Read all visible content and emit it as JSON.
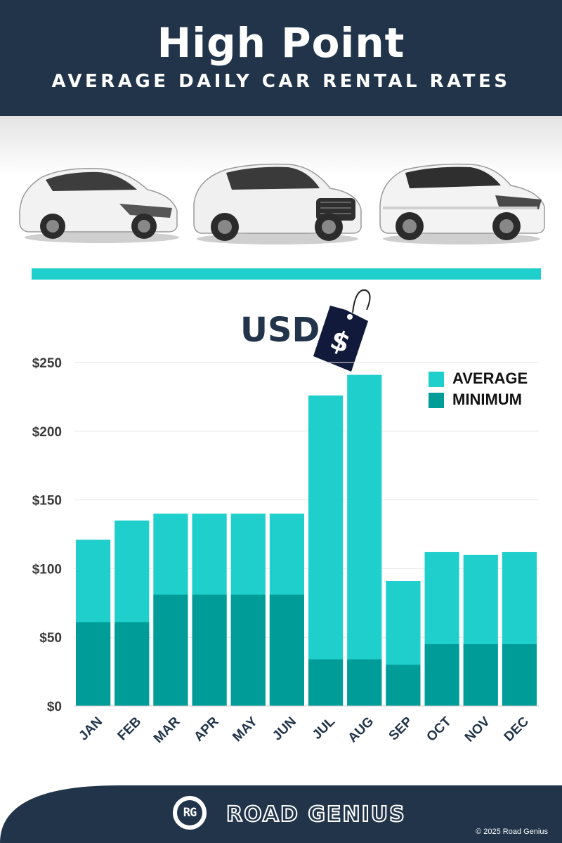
{
  "header": {
    "title": "High Point",
    "subtitle": "AVERAGE DAILY CAR RENTAL RATES"
  },
  "currency_label": "USD",
  "price_tag_symbol": "$",
  "colors": {
    "navy": "#21344a",
    "average": "#1ecfcb",
    "minimum": "#009c98",
    "accent_bar": "#1ecfcb"
  },
  "icons": [
    "hatchback-car-icon",
    "suv-car-icon",
    "crossover-car-icon",
    "price-tag-icon"
  ],
  "chart_data": {
    "type": "bar",
    "stacking": "overlay",
    "categories": [
      "JAN",
      "FEB",
      "MAR",
      "APR",
      "MAY",
      "JUN",
      "JUL",
      "AUG",
      "SEP",
      "OCT",
      "NOV",
      "DEC"
    ],
    "series": [
      {
        "name": "AVERAGE",
        "values": [
          121,
          135,
          140,
          140,
          140,
          140,
          226,
          241,
          91,
          112,
          110,
          112
        ]
      },
      {
        "name": "MINIMUM",
        "values": [
          61,
          61,
          81,
          81,
          81,
          81,
          34,
          34,
          30,
          45,
          45,
          45
        ]
      }
    ],
    "y_ticks": [
      "$0",
      "$50",
      "$100",
      "$150",
      "$200",
      "$250"
    ],
    "ylim": [
      0,
      250
    ],
    "grid": true,
    "legend_position": "top-right"
  },
  "footer": {
    "logo_text": "RG",
    "brand": "ROAD GENIUS",
    "copyright": "© 2025 Road Genius"
  }
}
